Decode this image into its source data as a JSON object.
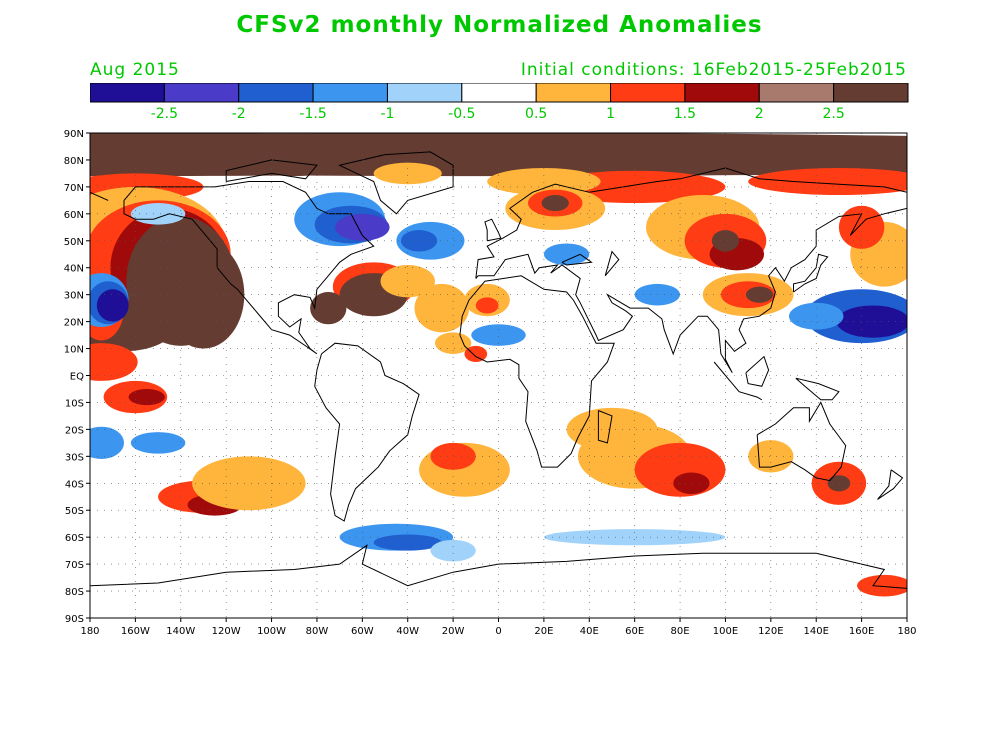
{
  "title": "CFSv2 monthly Normalized Anomalies",
  "subtitle_left": "Aug 2015",
  "subtitle_right": "Initial conditions: 16Feb2015-25Feb2015",
  "colorbar": {
    "colors": [
      "#1e0f96",
      "#4a3cc8",
      "#1f5fd0",
      "#3c96f0",
      "#a0d2fa",
      "#ffffff",
      "#ffb43c",
      "#ff3c14",
      "#a00a0a",
      "#a87a6e",
      "#643c32"
    ],
    "labels": [
      "-2.5",
      "-2",
      "-1.5",
      "-1",
      "-0.5",
      "0.5",
      "1",
      "1.5",
      "2",
      "2.5"
    ]
  },
  "map": {
    "lat_labels": [
      "90N",
      "80N",
      "70N",
      "60N",
      "50N",
      "40N",
      "30N",
      "20N",
      "10N",
      "EQ",
      "10S",
      "20S",
      "30S",
      "40S",
      "50S",
      "60S",
      "70S",
      "80S",
      "90S"
    ],
    "lon_labels": [
      "180",
      "160W",
      "140W",
      "120W",
      "100W",
      "80W",
      "60W",
      "40W",
      "20W",
      "0",
      "20E",
      "40E",
      "60E",
      "80E",
      "100E",
      "120E",
      "140E",
      "160E",
      "180"
    ],
    "colors": {
      "label": "#00c800",
      "coast": "#000000",
      "grid": "#555555"
    }
  }
}
